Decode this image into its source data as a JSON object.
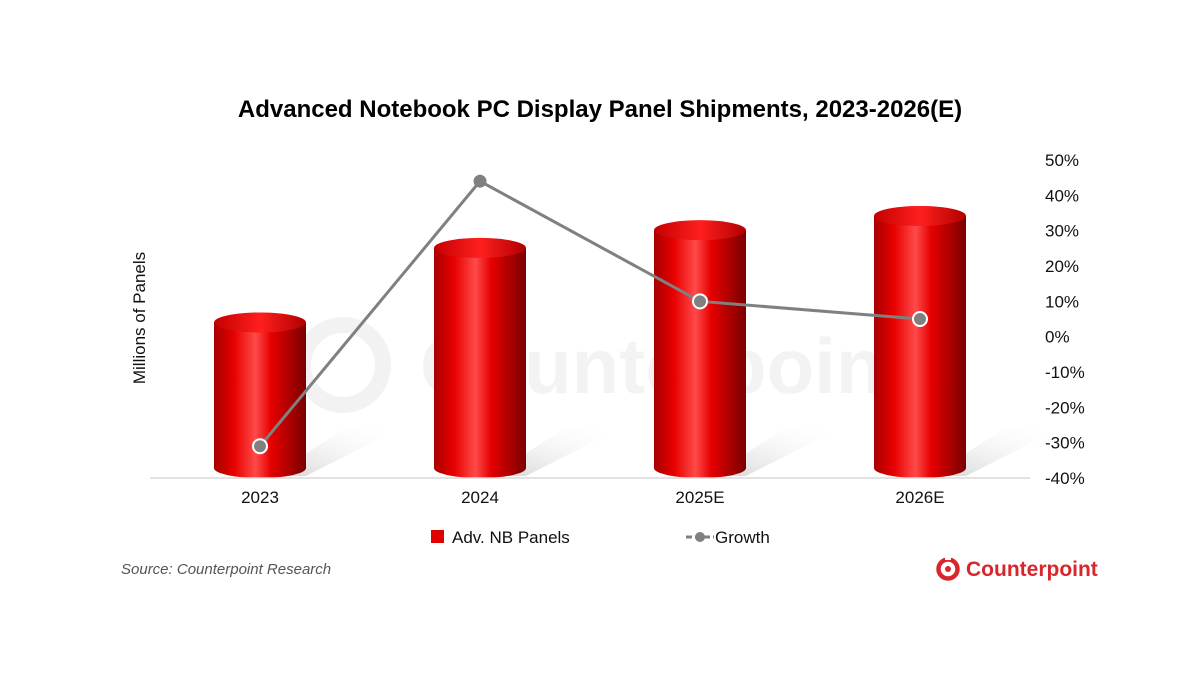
{
  "chart_data": {
    "type": "bar",
    "title": "Advanced Notebook PC Display Panel Shipments, 2023-2026(E)",
    "categories": [
      "2023",
      "2024",
      "2025E",
      "2026E"
    ],
    "ylabel_left": "Millions of Panels",
    "left_axis_ticks_shown": false,
    "ylim_right": [
      -40,
      50
    ],
    "right_ticks": [
      "50%",
      "40%",
      "30%",
      "20%",
      "10%",
      "0%",
      "-10%",
      "-20%",
      "-30%",
      "-40%"
    ],
    "bar_relative_heights": [
      0.41,
      0.62,
      0.67,
      0.71
    ],
    "series": [
      {
        "name": "Adv. NB Panels",
        "type": "bar",
        "color": "#e00000"
      },
      {
        "name": "Growth",
        "type": "line",
        "axis": "right",
        "color": "#808080",
        "values": [
          -31,
          44,
          10,
          5
        ]
      }
    ],
    "legend_position": "bottom",
    "grid": false
  },
  "footer": {
    "source": "Source: Counterpoint Research",
    "brand": "Counterpoint"
  },
  "watermark": "Counterpoint"
}
